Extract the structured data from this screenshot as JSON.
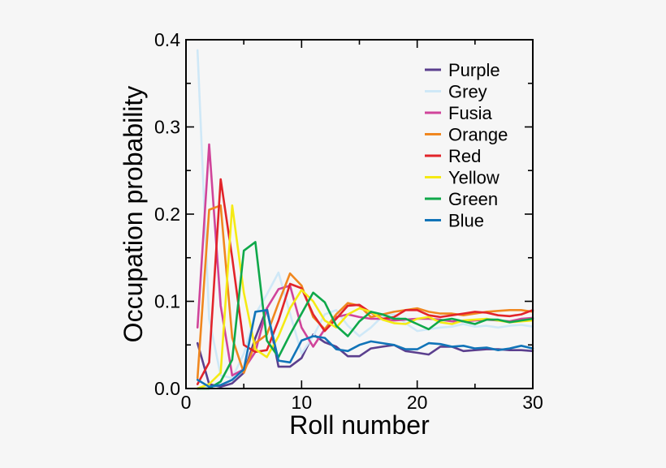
{
  "chart_data": {
    "type": "line",
    "xlabel": "Roll number",
    "ylabel": "Occupation probability",
    "xlim": [
      0,
      30
    ],
    "ylim": [
      0,
      0.4
    ],
    "xticks": [
      0,
      10,
      20,
      30
    ],
    "yticks": [
      0.0,
      0.1,
      0.2,
      0.3,
      0.4
    ],
    "ytick_labels": [
      "0.0",
      "0.1",
      "0.2",
      "0.3",
      "0.4"
    ],
    "grid": false,
    "legend_position": "top-right",
    "x": [
      1,
      2,
      3,
      4,
      5,
      6,
      7,
      8,
      9,
      10,
      11,
      12,
      13,
      14,
      15,
      16,
      17,
      18,
      19,
      20,
      21,
      22,
      23,
      24,
      25,
      26,
      27,
      28,
      29,
      30
    ],
    "series": [
      {
        "name": "Purple",
        "color": "#5b3f8e",
        "values": [
          0.052,
          0.005,
          0.002,
          0.006,
          0.018,
          0.058,
          0.092,
          0.025,
          0.025,
          0.035,
          0.062,
          0.053,
          0.048,
          0.037,
          0.037,
          0.046,
          0.048,
          0.05,
          0.043,
          0.041,
          0.039,
          0.048,
          0.048,
          0.043,
          0.044,
          0.045,
          0.045,
          0.044,
          0.044,
          0.043
        ]
      },
      {
        "name": "Grey",
        "color": "#cfe8f7",
        "values": [
          0.388,
          0.08,
          0.015,
          0.012,
          0.04,
          0.085,
          0.108,
          0.133,
          0.086,
          0.04,
          0.06,
          0.085,
          0.09,
          0.072,
          0.06,
          0.07,
          0.083,
          0.085,
          0.075,
          0.066,
          0.068,
          0.07,
          0.071,
          0.074,
          0.071,
          0.072,
          0.07,
          0.072,
          0.073,
          0.071
        ]
      },
      {
        "name": "Fusia",
        "color": "#d0449a",
        "values": [
          0.07,
          0.28,
          0.095,
          0.015,
          0.022,
          0.042,
          0.092,
          0.114,
          0.118,
          0.07,
          0.048,
          0.068,
          0.082,
          0.085,
          0.082,
          0.08,
          0.08,
          0.078,
          0.079,
          0.08,
          0.08,
          0.079,
          0.077,
          0.077,
          0.078,
          0.079,
          0.078,
          0.077,
          0.08,
          0.081
        ]
      },
      {
        "name": "Orange",
        "color": "#f0871f",
        "values": [
          0.012,
          0.205,
          0.21,
          0.058,
          0.018,
          0.052,
          0.062,
          0.098,
          0.132,
          0.118,
          0.082,
          0.068,
          0.085,
          0.098,
          0.095,
          0.082,
          0.085,
          0.088,
          0.09,
          0.092,
          0.088,
          0.086,
          0.086,
          0.084,
          0.086,
          0.088,
          0.089,
          0.09,
          0.09,
          0.088
        ]
      },
      {
        "name": "Red",
        "color": "#e2242a",
        "values": [
          0.005,
          0.03,
          0.24,
          0.15,
          0.05,
          0.042,
          0.044,
          0.078,
          0.12,
          0.115,
          0.085,
          0.066,
          0.08,
          0.095,
          0.096,
          0.087,
          0.08,
          0.082,
          0.09,
          0.09,
          0.084,
          0.082,
          0.084,
          0.086,
          0.088,
          0.087,
          0.084,
          0.083,
          0.085,
          0.09
        ]
      },
      {
        "name": "Yellow",
        "color": "#f5ea14",
        "values": [
          0.0,
          0.005,
          0.018,
          0.21,
          0.11,
          0.045,
          0.036,
          0.06,
          0.092,
          0.113,
          0.1,
          0.078,
          0.07,
          0.085,
          0.092,
          0.088,
          0.079,
          0.075,
          0.074,
          0.08,
          0.082,
          0.076,
          0.074,
          0.078,
          0.079,
          0.08,
          0.078,
          0.076,
          0.077,
          0.078
        ]
      },
      {
        "name": "Green",
        "color": "#0fa84a",
        "values": [
          0.0,
          0.0,
          0.008,
          0.033,
          0.158,
          0.168,
          0.055,
          0.036,
          0.062,
          0.086,
          0.11,
          0.099,
          0.072,
          0.06,
          0.077,
          0.088,
          0.085,
          0.08,
          0.08,
          0.074,
          0.068,
          0.078,
          0.08,
          0.077,
          0.074,
          0.079,
          0.079,
          0.076,
          0.078,
          0.08
        ]
      },
      {
        "name": "Blue",
        "color": "#1174b8",
        "values": [
          0.01,
          0.002,
          0.004,
          0.01,
          0.022,
          0.088,
          0.09,
          0.032,
          0.03,
          0.055,
          0.06,
          0.058,
          0.045,
          0.043,
          0.05,
          0.054,
          0.052,
          0.05,
          0.045,
          0.045,
          0.052,
          0.051,
          0.048,
          0.049,
          0.046,
          0.047,
          0.044,
          0.046,
          0.049,
          0.046
        ]
      }
    ]
  }
}
